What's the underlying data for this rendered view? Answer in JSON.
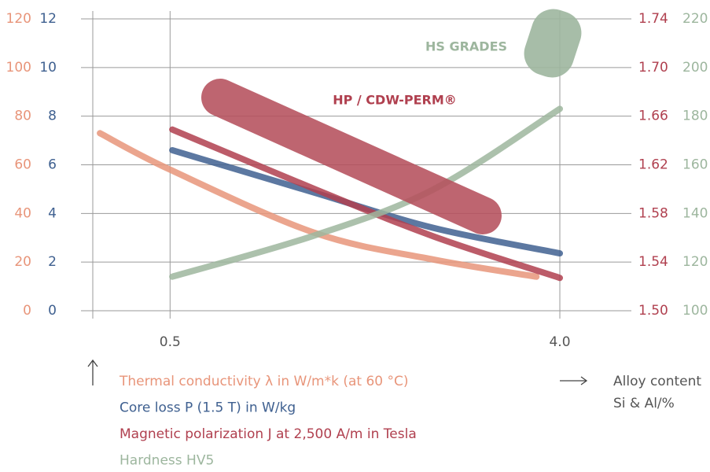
{
  "chart_data": {
    "type": "line",
    "xlabel": [
      "Alloy content",
      "Si & Al/%"
    ],
    "xlim": [
      -0.3,
      4.6
    ],
    "xticks": [
      0.5,
      {
        "value": 4,
        "label": "4.0"
      }
    ],
    "grid": true,
    "annotations": [
      "HP / CDW-PERM®",
      "HS GRADES"
    ],
    "series": [
      {
        "name": "Thermal conductivity λ in W/m*k (at 60 °C)",
        "color": "#e8957a",
        "x": [
          -0.13,
          0.5,
          1.8,
          2.87,
          3.79
        ],
        "values": [
          73,
          58,
          32,
          21,
          14
        ],
        "ylim": [
          0,
          120
        ],
        "yticks": [
          0,
          20,
          40,
          60,
          80,
          100,
          120
        ]
      },
      {
        "name": "Core loss P (1.5 T) in W/kg",
        "color": "#3f6090",
        "x": [
          0.52,
          1.8,
          2.87,
          4.0
        ],
        "values": [
          6.6,
          4.85,
          3.4,
          2.36
        ],
        "ylim": [
          0,
          12
        ],
        "yticks": [
          0,
          2,
          4,
          6,
          8,
          10,
          12
        ]
      },
      {
        "name": "Magnetic polarization J at 2,500 A/m in Tesla",
        "color": "#b0404f",
        "x": [
          0.52,
          1.8,
          2.87,
          4.0
        ],
        "values": [
          1.649,
          1.6,
          1.561,
          1.527
        ],
        "ylim": [
          1.5,
          1.74
        ],
        "yticks": [
          {
            "value": 1.5,
            "label": "1.50"
          },
          1.54,
          1.58,
          1.62,
          1.66,
          {
            "value": 1.7,
            "label": "1.70"
          },
          1.74
        ]
      },
      {
        "name": "Hardness HV5",
        "color": "#9db69e",
        "x": [
          0.52,
          1.8,
          2.87,
          4.0
        ],
        "values": [
          114,
          131,
          150,
          183
        ],
        "ylim": [
          100,
          220
        ],
        "yticks": [
          100,
          120,
          140,
          160,
          180,
          200,
          220
        ]
      }
    ]
  }
}
